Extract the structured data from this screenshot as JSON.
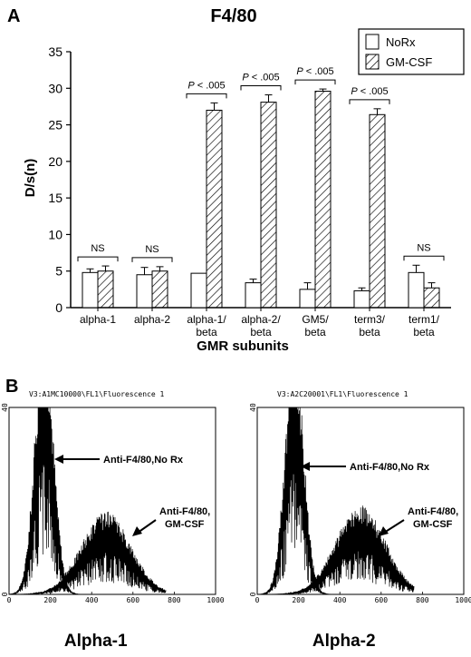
{
  "panel_a": {
    "letter": "A",
    "title": "F4/80",
    "ylabel": "D/s(n)",
    "xlabel": "GMR subunits"
  },
  "panel_b": {
    "letter": "B"
  },
  "chart_data": [
    {
      "type": "bar",
      "title": "F4/80",
      "xlabel": "GMR subunits",
      "ylabel": "D/s(n)",
      "ylim": [
        0,
        35
      ],
      "yticks": [
        0,
        5,
        10,
        15,
        20,
        25,
        30,
        35
      ],
      "categories": [
        [
          "alpha-1"
        ],
        [
          "alpha-2"
        ],
        [
          "alpha-1/",
          "beta"
        ],
        [
          "alpha-2/",
          "beta"
        ],
        [
          "GM5/",
          "beta"
        ],
        [
          "term3/",
          "beta"
        ],
        [
          "term1/",
          "beta"
        ]
      ],
      "series": [
        {
          "name": "NoRx",
          "values": [
            4.8,
            4.5,
            4.7,
            3.4,
            2.5,
            2.3,
            4.8
          ],
          "errors": [
            0.5,
            1.0,
            0.0,
            0.5,
            0.9,
            0.4,
            1.0
          ],
          "color": "#ffffff",
          "pattern": "none"
        },
        {
          "name": "GM-CSF",
          "values": [
            5.0,
            5.0,
            27.0,
            28.1,
            29.6,
            26.4,
            2.7
          ],
          "errors": [
            0.7,
            0.6,
            1.0,
            1.0,
            0.3,
            0.8,
            0.7
          ],
          "color": "#ffffff",
          "pattern": "hatch"
        }
      ],
      "annotations": [
        "NS",
        "NS",
        "P < .005",
        "P < .005",
        "P < .005",
        "P < .005",
        "NS"
      ],
      "legend_position": "top-right",
      "grid": false
    },
    {
      "type": "line",
      "title": "V3:A1MC10000\\FL1\\Fluorescence 1",
      "xlim": [
        0,
        1000
      ],
      "xticks": [
        0,
        200,
        400,
        600,
        800,
        1000
      ],
      "ylim": [
        0,
        40
      ],
      "yticks": [
        0,
        40
      ],
      "caption": "Alpha-1",
      "series": [
        {
          "name": "Anti-F4/80,No Rx",
          "peak_x": 170,
          "peak_y": 38
        },
        {
          "name": "Anti-F4/80, GM-CSF",
          "peak_x": 470,
          "peak_y": 12
        }
      ],
      "annotations": [
        "Anti-F4/80,No Rx",
        "Anti-F4/80,",
        "GM-CSF"
      ]
    },
    {
      "type": "line",
      "title": "V3:A2C20001\\FL1\\Fluorescence 1",
      "xlim": [
        0,
        1000
      ],
      "xticks": [
        0,
        200,
        400,
        600,
        800,
        1000
      ],
      "ylim": [
        0,
        40
      ],
      "yticks": [
        0,
        40
      ],
      "caption": "Alpha-2",
      "series": [
        {
          "name": "Anti-F4/80,No Rx",
          "peak_x": 180,
          "peak_y": 36
        },
        {
          "name": "Anti-F4/80, GM-CSF",
          "peak_x": 500,
          "peak_y": 13
        }
      ],
      "annotations": [
        "Anti-F4/80,No Rx",
        "Anti-F4/80,",
        "GM-CSF"
      ]
    }
  ]
}
